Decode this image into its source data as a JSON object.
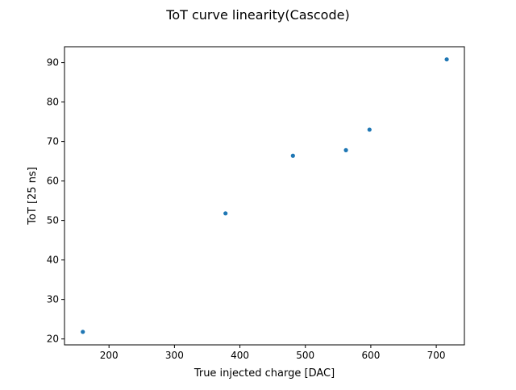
{
  "chart_data": {
    "type": "scatter",
    "title": "ToT curve linearity(Cascode)",
    "xlabel": "True injected charge [DAC]",
    "ylabel": "ToT [25 ns]",
    "xlim": [
      132,
      743
    ],
    "ylim": [
      18.5,
      94.0
    ],
    "xticks": [
      200,
      300,
      400,
      500,
      600,
      700
    ],
    "yticks": [
      20,
      30,
      40,
      50,
      60,
      70,
      80,
      90
    ],
    "grid": false,
    "marker_color": "#1f77b4",
    "series": [
      {
        "x": [
          160,
          378,
          481,
          562,
          598,
          716
        ],
        "y": [
          21.8,
          51.8,
          66.4,
          67.8,
          73.0,
          90.8
        ]
      }
    ]
  }
}
